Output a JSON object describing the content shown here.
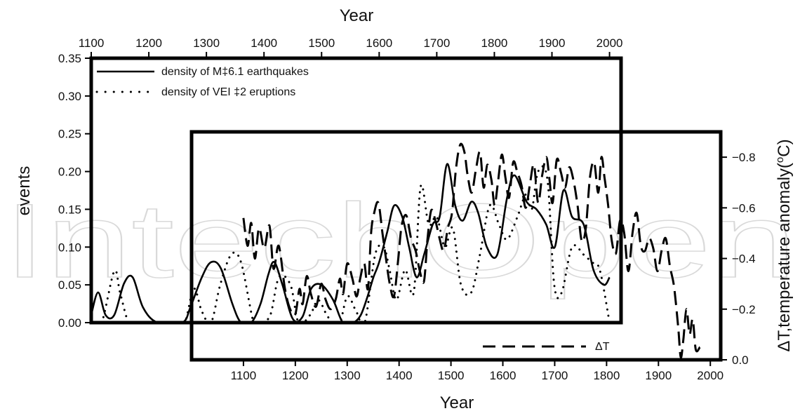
{
  "chart_data": {
    "type": "line",
    "watermark": "IntechOpen",
    "top_axis": {
      "label": "Year",
      "range": [
        1100,
        2020
      ],
      "ticks": [
        1100,
        1200,
        1300,
        1400,
        1500,
        1600,
        1700,
        1800,
        1900,
        2000
      ],
      "tick_labels": [
        "1100",
        "1200",
        "1300",
        "1400",
        "1500",
        "1600",
        "1700",
        "1800",
        "1900",
        "2000"
      ]
    },
    "left_axis": {
      "label": "events",
      "range": [
        0,
        0.35
      ],
      "ticks": [
        0,
        0.05,
        0.1,
        0.15,
        0.2,
        0.25,
        0.3,
        0.35
      ],
      "tick_labels": [
        "0.00",
        "0.05",
        "0.10",
        "0.15",
        "0.20",
        "0.25",
        "0.30",
        "0.35"
      ]
    },
    "bottom_axis": {
      "label": "Year",
      "range": [
        1000,
        2020
      ],
      "ticks": [
        1100,
        1200,
        1300,
        1400,
        1500,
        1600,
        1700,
        1800,
        1900,
        2000
      ],
      "tick_labels": [
        "1100",
        "1200",
        "1300",
        "1400",
        "1500",
        "1600",
        "1700",
        "1800",
        "1900",
        "2000"
      ]
    },
    "right_axis": {
      "label_prefix": "ΔT,temperature anomaly(",
      "label_sup": "o",
      "label_suffix": "C)",
      "range": [
        0,
        -0.9
      ],
      "ticks": [
        0,
        -0.2,
        -0.4,
        -0.6,
        -0.8
      ],
      "tick_labels": [
        "0.0",
        "−0.2",
        "−0.4",
        "−0.6",
        "−0.8"
      ]
    },
    "legend_top": [
      {
        "label": "density of M‡6.1 earthquakes",
        "style": "solid"
      },
      {
        "label": "density of VEI ‡2 eruptions",
        "style": "dotted"
      }
    ],
    "legend_bottom": [
      {
        "label": "ΔT",
        "style": "dashed"
      }
    ],
    "series": [
      {
        "name": "density of M‡6.1 earthquakes",
        "style": "solid",
        "axis": "top-left",
        "x": [
          1100,
          1112,
          1125,
          1140,
          1157,
          1172,
          1190,
          1215,
          1258,
          1272,
          1292,
          1308,
          1325,
          1345,
          1360,
          1378,
          1394,
          1408,
          1418,
          1432,
          1450,
          1467,
          1482,
          1500,
          1520,
          1537,
          1555,
          1568,
          1580,
          1590,
          1600,
          1614,
          1626,
          1640,
          1652,
          1665,
          1678,
          1693,
          1705,
          1718,
          1732,
          1745,
          1760,
          1772,
          1787,
          1805,
          1822,
          1835,
          1856,
          1873,
          1890,
          1905,
          1920,
          1935,
          1955,
          1972,
          1990,
          2000
        ],
        "y": [
          0.01,
          0.04,
          0.01,
          0.01,
          0.052,
          0.06,
          0.02,
          0.0,
          0.0,
          0.02,
          0.06,
          0.08,
          0.072,
          0.025,
          0.0,
          0.0,
          0.025,
          0.065,
          0.08,
          0.05,
          0.005,
          0.008,
          0.045,
          0.05,
          0.03,
          0.0,
          0.0,
          0.01,
          0.035,
          0.06,
          0.08,
          0.12,
          0.155,
          0.14,
          0.1,
          0.06,
          0.09,
          0.13,
          0.14,
          0.21,
          0.155,
          0.135,
          0.16,
          0.145,
          0.1,
          0.09,
          0.165,
          0.195,
          0.16,
          0.15,
          0.13,
          0.1,
          0.175,
          0.14,
          0.13,
          0.07,
          0.05,
          0.06
        ]
      },
      {
        "name": "density of VEI ‡2 eruptions",
        "style": "dotted",
        "axis": "top-left",
        "x": [
          1100,
          1118,
          1140,
          1150,
          1165,
          1180,
          1200,
          1240,
          1262,
          1278,
          1292,
          1308,
          1324,
          1343,
          1360,
          1382,
          1394,
          1411,
          1426,
          1446,
          1460,
          1480,
          1494,
          1509,
          1520,
          1532,
          1545,
          1560,
          1575,
          1593,
          1608,
          1618,
          1630,
          1645,
          1660,
          1672,
          1686,
          1700,
          1714,
          1728,
          1742,
          1760,
          1775,
          1792,
          1808,
          1822,
          1840,
          1855,
          1865,
          1876,
          1892,
          1904,
          1917,
          1935,
          1955,
          1969,
          1983,
          2000
        ],
        "y": [
          0.0,
          0.0,
          0.068,
          0.04,
          0.0,
          0.0,
          0.0,
          0.0,
          0.0,
          0.045,
          0.015,
          0.0,
          0.05,
          0.09,
          0.08,
          0.0,
          0.0,
          0.01,
          0.06,
          0.05,
          0.0,
          0.01,
          0.03,
          0.01,
          0.0,
          0.0,
          0.035,
          0.015,
          0.0,
          0.09,
          0.1,
          0.07,
          0.03,
          0.07,
          0.04,
          0.18,
          0.13,
          0.14,
          0.1,
          0.125,
          0.05,
          0.04,
          0.09,
          0.155,
          0.13,
          0.11,
          0.14,
          0.17,
          0.15,
          0.2,
          0.19,
          0.05,
          0.04,
          0.1,
          0.09,
          0.08,
          0.07,
          0.0
        ]
      },
      {
        "name": "ΔT",
        "style": "dashed",
        "axis": "bottom-right",
        "x": [
          1100,
          1108,
          1115,
          1122,
          1130,
          1140,
          1150,
          1158,
          1168,
          1180,
          1190,
          1200,
          1208,
          1214,
          1222,
          1230,
          1240,
          1250,
          1258,
          1268,
          1278,
          1286,
          1292,
          1300,
          1310,
          1318,
          1325,
          1333,
          1340,
          1346,
          1352,
          1360,
          1368,
          1374,
          1382,
          1390,
          1398,
          1405,
          1414,
          1423,
          1432,
          1440,
          1448,
          1455,
          1462,
          1470,
          1478,
          1486,
          1494,
          1502,
          1510,
          1518,
          1526,
          1532,
          1540,
          1548,
          1556,
          1563,
          1570,
          1578,
          1584,
          1590,
          1598,
          1605,
          1612,
          1620,
          1628,
          1636,
          1644,
          1652,
          1660,
          1668,
          1676,
          1684,
          1690,
          1696,
          1704,
          1712,
          1720,
          1728,
          1736,
          1744,
          1752,
          1760,
          1768,
          1776,
          1784,
          1790,
          1796,
          1803,
          1810,
          1818,
          1826,
          1834,
          1842,
          1850,
          1858,
          1866,
          1874,
          1882,
          1890,
          1898,
          1906,
          1914,
          1922,
          1930,
          1938,
          1943,
          1948,
          1954,
          1960,
          1966,
          1972,
          1980
        ],
        "y": [
          -0.56,
          -0.45,
          -0.54,
          -0.4,
          -0.52,
          -0.44,
          -0.53,
          -0.36,
          -0.45,
          -0.28,
          -0.2,
          -0.18,
          -0.28,
          -0.22,
          -0.33,
          -0.26,
          -0.21,
          -0.3,
          -0.24,
          -0.2,
          -0.24,
          -0.32,
          -0.26,
          -0.38,
          -0.32,
          -0.25,
          -0.32,
          -0.38,
          -0.28,
          -0.5,
          -0.58,
          -0.62,
          -0.5,
          -0.41,
          -0.3,
          -0.25,
          -0.39,
          -0.53,
          -0.57,
          -0.48,
          -0.43,
          -0.35,
          -0.31,
          -0.48,
          -0.59,
          -0.55,
          -0.48,
          -0.43,
          -0.52,
          -0.58,
          -0.76,
          -0.85,
          -0.82,
          -0.73,
          -0.66,
          -0.75,
          -0.82,
          -0.68,
          -0.77,
          -0.71,
          -0.61,
          -0.69,
          -0.81,
          -0.72,
          -0.64,
          -0.78,
          -0.74,
          -0.69,
          -0.6,
          -0.69,
          -0.77,
          -0.62,
          -0.73,
          -0.8,
          -0.71,
          -0.62,
          -0.79,
          -0.74,
          -0.68,
          -0.76,
          -0.71,
          -0.61,
          -0.47,
          -0.52,
          -0.72,
          -0.78,
          -0.66,
          -0.8,
          -0.72,
          -0.61,
          -0.47,
          -0.42,
          -0.55,
          -0.5,
          -0.35,
          -0.5,
          -0.58,
          -0.45,
          -0.43,
          -0.48,
          -0.44,
          -0.35,
          -0.43,
          -0.48,
          -0.37,
          -0.29,
          -0.13,
          -0.01,
          -0.08,
          -0.2,
          -0.1,
          -0.16,
          -0.04,
          -0.05
        ]
      }
    ]
  }
}
